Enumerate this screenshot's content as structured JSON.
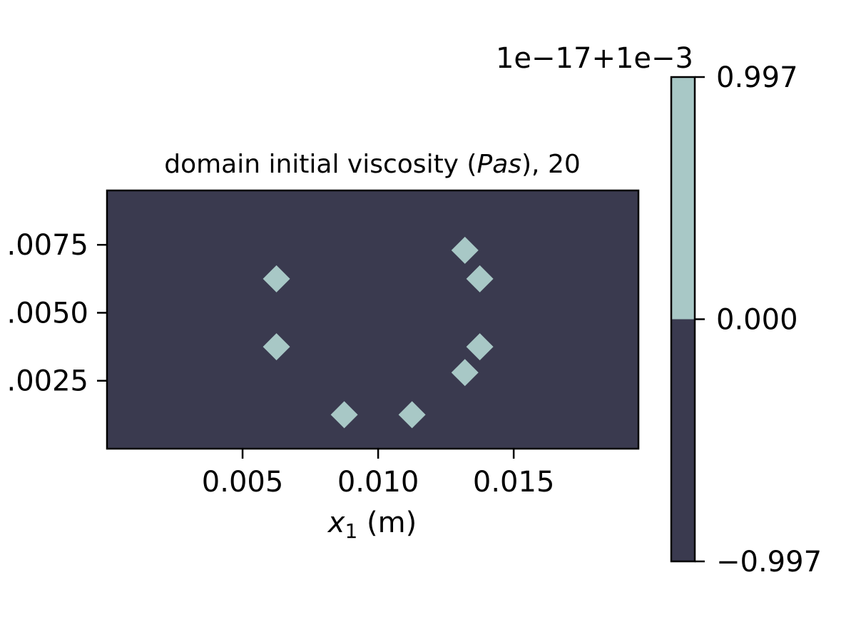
{
  "chart_data": {
    "type": "scatter",
    "title_text": "domain initial viscosity (",
    "title_var": "Pas",
    "title_suffix": "), 20",
    "xlabel_var": "x",
    "xlabel_sub": "1",
    "xlabel_unit": " (m)",
    "ylabel": "",
    "xlim": [
      0,
      0.0196
    ],
    "ylim": [
      0,
      0.0095
    ],
    "xticks": [
      0.005,
      0.01,
      0.015
    ],
    "xtick_labels": [
      "0.005",
      "0.010",
      "0.015"
    ],
    "yticks": [
      0.0025,
      0.005,
      0.0075
    ],
    "ytick_labels": [
      ".0025",
      ".0050",
      ".0075"
    ],
    "background_color": "#3a3a4f",
    "marker_color": "#a8c8c6",
    "marker": "diamond",
    "points": [
      {
        "x": 0.00625,
        "y": 0.00625
      },
      {
        "x": 0.00625,
        "y": 0.00375
      },
      {
        "x": 0.00875,
        "y": 0.00125
      },
      {
        "x": 0.01125,
        "y": 0.00125
      },
      {
        "x": 0.0132,
        "y": 0.0028
      },
      {
        "x": 0.01375,
        "y": 0.00375
      },
      {
        "x": 0.01375,
        "y": 0.00625
      },
      {
        "x": 0.0132,
        "y": 0.0073
      }
    ],
    "colorbar": {
      "offset_label": "1e−17+1e−3",
      "ticks": [
        0.997,
        0.0,
        -0.997
      ],
      "tick_labels": [
        "0.997",
        "0.000",
        "−0.997"
      ],
      "range": [
        -0.997,
        0.997
      ],
      "segments": [
        {
          "from": 0.0,
          "to": 0.997,
          "color": "#a8c8c6"
        },
        {
          "from": -0.997,
          "to": 0.0,
          "color": "#3a3a4f"
        }
      ]
    }
  }
}
